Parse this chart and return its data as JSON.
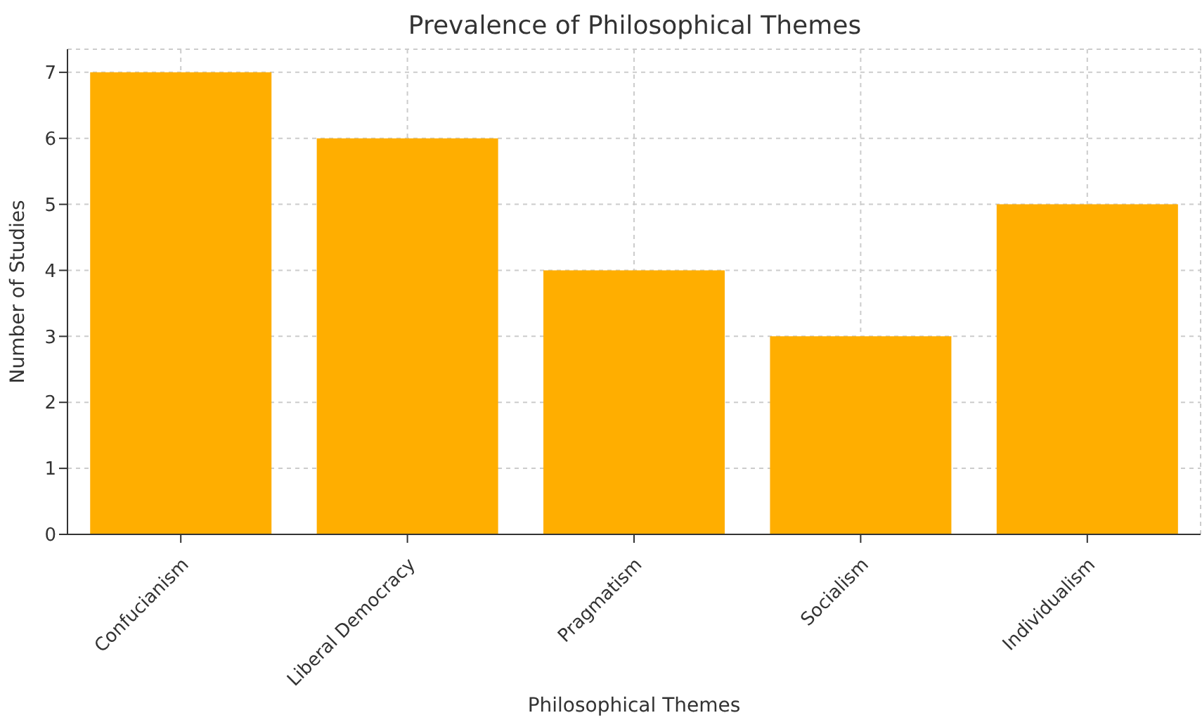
{
  "chart_data": {
    "type": "bar",
    "title": "Prevalence of Philosophical Themes",
    "xlabel": "Philosophical Themes",
    "ylabel": "Number of Studies",
    "categories": [
      "Confucianism",
      "Liberal Democracy",
      "Pragmatism",
      "Socialism",
      "Individualism"
    ],
    "values": [
      7,
      6,
      4,
      3,
      5
    ],
    "color": "#ffae00",
    "ylim": [
      0,
      7.35
    ],
    "yticks": [
      0,
      1,
      2,
      3,
      4,
      5,
      6,
      7
    ],
    "grid": true
  }
}
